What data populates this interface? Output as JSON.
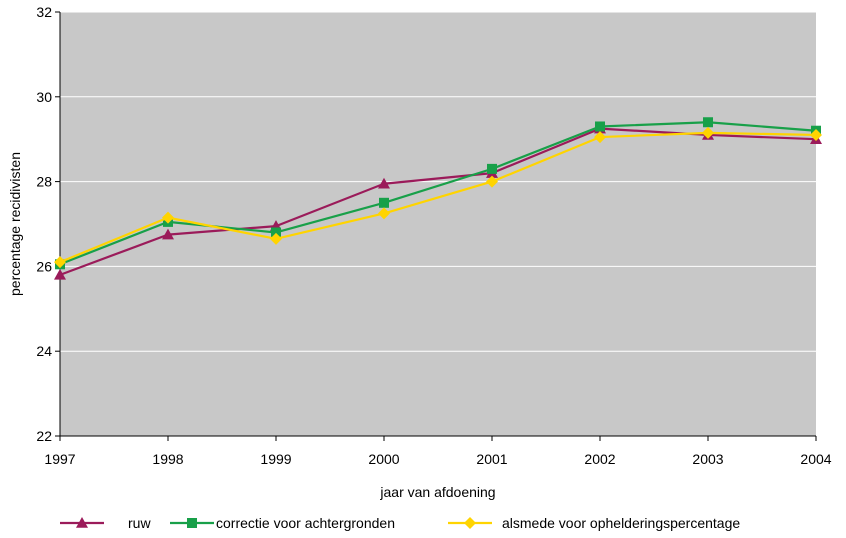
{
  "chart_data": {
    "type": "line",
    "title": "",
    "xlabel": "jaar van afdoening",
    "ylabel": "percentage recidivisten",
    "x": [
      "1997",
      "1998",
      "1999",
      "2000",
      "2001",
      "2002",
      "2003",
      "2004"
    ],
    "ylim": [
      22,
      32
    ],
    "yticks": [
      "22",
      "24",
      "26",
      "28",
      "30",
      "32"
    ],
    "grid": true,
    "legend_position": "bottom",
    "series": [
      {
        "name": "ruw",
        "color": "#9b1b5a",
        "marker": "triangle",
        "values": [
          25.8,
          26.75,
          26.95,
          27.95,
          28.2,
          29.25,
          29.1,
          29.0
        ]
      },
      {
        "name": "correctie voor achtergronden",
        "color": "#18a049",
        "marker": "square",
        "values": [
          26.05,
          27.05,
          26.8,
          27.5,
          28.3,
          29.3,
          29.4,
          29.2
        ]
      },
      {
        "name": "alsmede voor ophelderingspercentage",
        "color": "#ffd400",
        "marker": "diamond",
        "values": [
          26.1,
          27.15,
          26.65,
          27.25,
          28.0,
          29.05,
          29.15,
          29.1
        ]
      }
    ],
    "plot_background": "#c8c8c8",
    "gridline_color": "#ffffff"
  }
}
